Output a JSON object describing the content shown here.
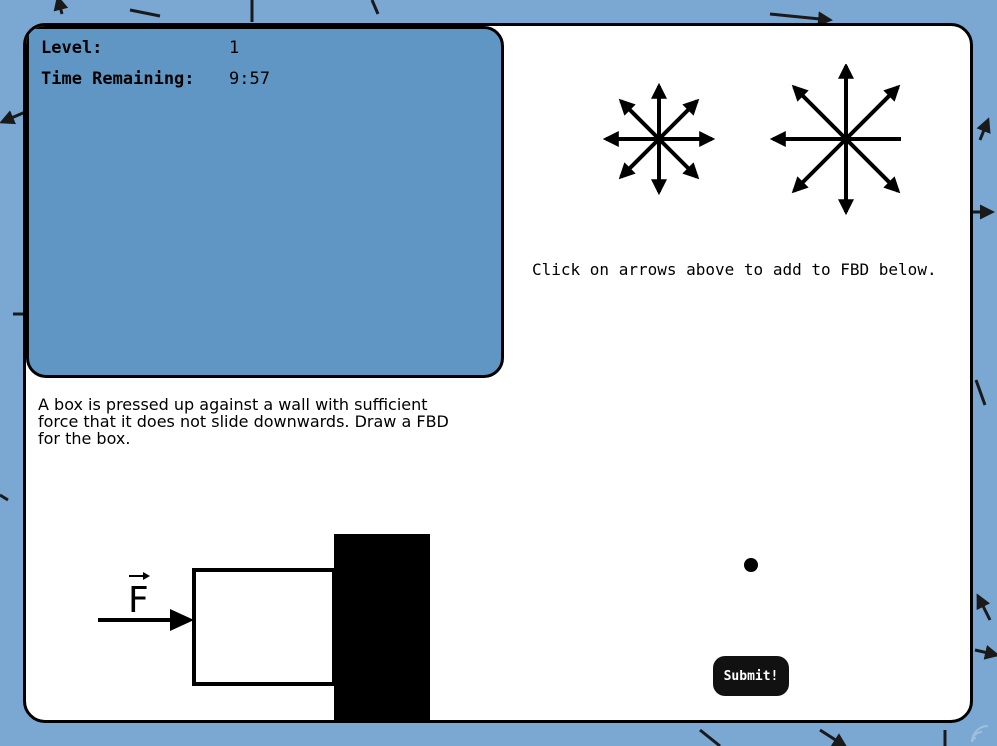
{
  "hud": {
    "level_label": "Level:",
    "level_value": "1",
    "time_label": "Time Remaining:",
    "time_value": "9:57"
  },
  "problem": {
    "text": "A box is pressed up against a wall with sufficient force that it does not slide downwards. Draw a FBD for the box."
  },
  "diagram": {
    "force_label": "F"
  },
  "palette": {
    "small_set": "small arrow set",
    "large_set": "large arrow set",
    "instruction": "Click on arrows above to add to FBD below."
  },
  "controls": {
    "submit_label": "Submit!"
  },
  "colors": {
    "background": "#7aa8d2",
    "hud_panel": "#6096c4",
    "card": "#ffffff",
    "ink": "#000000"
  },
  "icons": [
    "arrow-up-icon",
    "arrow-down-icon",
    "arrow-left-icon",
    "arrow-right-icon",
    "arrow-up-left-icon",
    "arrow-up-right-icon",
    "arrow-down-left-icon",
    "arrow-down-right-icon",
    "signal-icon"
  ]
}
